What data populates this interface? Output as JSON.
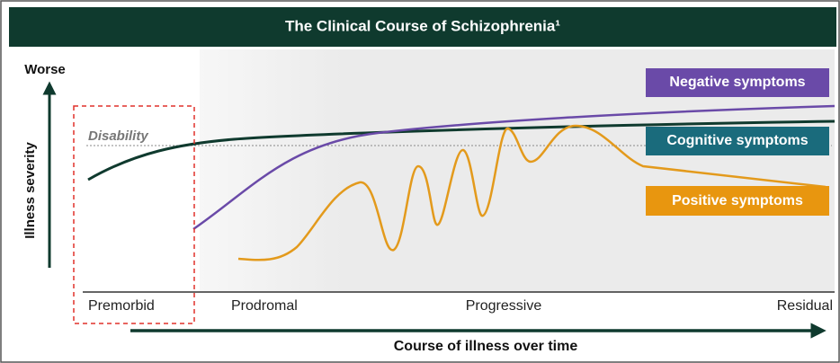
{
  "header": {
    "title": "The Clinical Course of Schizophrenia¹"
  },
  "y_axis": {
    "top_label": "Worse",
    "label": "Illness severity"
  },
  "threshold": {
    "label": "Disability"
  },
  "curves": [
    {
      "label": "Negative symptoms"
    },
    {
      "label": "Cognitive symptoms"
    },
    {
      "label": "Positive symptoms"
    }
  ],
  "phases": [
    "Premorbid",
    "Prodromal",
    "Progressive",
    "Residual"
  ],
  "x_axis": {
    "label": "Course of illness over time"
  }
}
